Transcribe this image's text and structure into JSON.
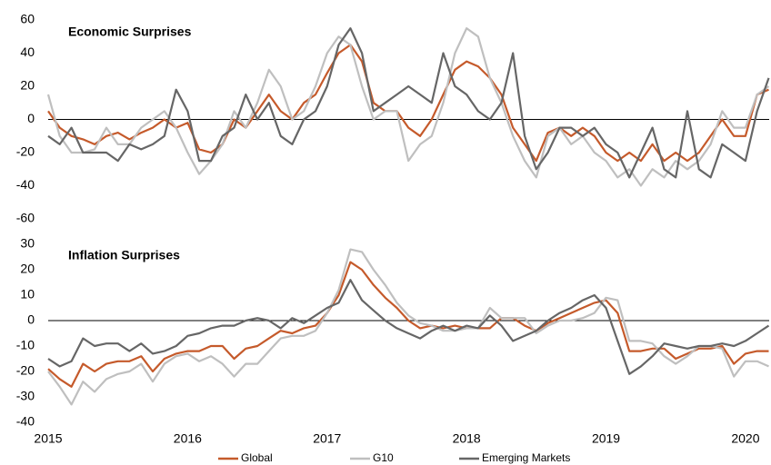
{
  "chart_data": [
    {
      "type": "line",
      "title": "Economic Surprises",
      "x": [
        2015,
        2015.083,
        2015.167,
        2015.25,
        2015.333,
        2015.417,
        2015.5,
        2015.583,
        2015.667,
        2015.75,
        2015.833,
        2015.917,
        2016,
        2016.083,
        2016.167,
        2016.25,
        2016.333,
        2016.417,
        2016.5,
        2016.583,
        2016.667,
        2016.75,
        2016.833,
        2016.917,
        2017,
        2017.083,
        2017.167,
        2017.25,
        2017.333,
        2017.417,
        2017.5,
        2017.583,
        2017.667,
        2017.75,
        2017.833,
        2017.917,
        2018,
        2018.083,
        2018.167,
        2018.25,
        2018.333,
        2018.417,
        2018.5,
        2018.583,
        2018.667,
        2018.75,
        2018.833,
        2018.917,
        2019,
        2019.083,
        2019.167,
        2019.25,
        2019.333,
        2019.417,
        2019.5,
        2019.583,
        2019.667,
        2019.75,
        2019.833,
        2019.917,
        2020,
        2020.083,
        2020.167
      ],
      "xlim": [
        2015,
        2020.17
      ],
      "ylim": [
        -60,
        60
      ],
      "yticks": [
        -60,
        -40,
        -20,
        0,
        20,
        40,
        60
      ],
      "series": [
        {
          "name": "Global",
          "color": "#c55a2b",
          "values": [
            5,
            -5,
            -10,
            -12,
            -15,
            -10,
            -8,
            -12,
            -8,
            -5,
            0,
            -5,
            -2,
            -18,
            -20,
            -15,
            0,
            -5,
            5,
            15,
            5,
            0,
            10,
            15,
            28,
            40,
            45,
            35,
            10,
            5,
            5,
            -5,
            -10,
            0,
            15,
            30,
            35,
            32,
            25,
            15,
            -5,
            -15,
            -25,
            -8,
            -5,
            -10,
            -5,
            -10,
            -20,
            -25,
            -20,
            -25,
            -15,
            -25,
            -20,
            -25,
            -20,
            -10,
            0,
            -10,
            -10,
            15,
            18
          ]
        },
        {
          "name": "G10",
          "color": "#bfbfbf",
          "values": [
            15,
            -10,
            -20,
            -20,
            -18,
            -5,
            -15,
            -15,
            -5,
            0,
            5,
            -5,
            -20,
            -33,
            -25,
            -15,
            5,
            -5,
            10,
            30,
            20,
            0,
            5,
            20,
            40,
            50,
            45,
            20,
            0,
            5,
            5,
            -25,
            -15,
            -10,
            10,
            40,
            55,
            50,
            25,
            10,
            -10,
            -25,
            -35,
            -10,
            -5,
            -15,
            -10,
            -20,
            -25,
            -35,
            -30,
            -40,
            -30,
            -35,
            -25,
            -30,
            -25,
            -15,
            5,
            -5,
            -5,
            15,
            20
          ]
        },
        {
          "name": "Emerging Markets",
          "color": "#666666",
          "values": [
            -10,
            -15,
            -5,
            -20,
            -20,
            -20,
            -25,
            -15,
            -18,
            -15,
            -10,
            18,
            5,
            -25,
            -25,
            -10,
            -5,
            15,
            0,
            10,
            -10,
            -15,
            0,
            5,
            20,
            45,
            55,
            40,
            5,
            10,
            15,
            20,
            15,
            10,
            40,
            20,
            15,
            5,
            0,
            10,
            40,
            -10,
            -30,
            -20,
            -5,
            -5,
            -10,
            -5,
            -15,
            -20,
            -35,
            -20,
            -5,
            -30,
            -35,
            5,
            -30,
            -35,
            -15,
            -20,
            -25,
            5,
            25
          ]
        }
      ]
    },
    {
      "type": "line",
      "title": "Inflation Surprises",
      "x": [
        2015,
        2015.083,
        2015.167,
        2015.25,
        2015.333,
        2015.417,
        2015.5,
        2015.583,
        2015.667,
        2015.75,
        2015.833,
        2015.917,
        2016,
        2016.083,
        2016.167,
        2016.25,
        2016.333,
        2016.417,
        2016.5,
        2016.583,
        2016.667,
        2016.75,
        2016.833,
        2016.917,
        2017,
        2017.083,
        2017.167,
        2017.25,
        2017.333,
        2017.417,
        2017.5,
        2017.583,
        2017.667,
        2017.75,
        2017.833,
        2017.917,
        2018,
        2018.083,
        2018.167,
        2018.25,
        2018.333,
        2018.417,
        2018.5,
        2018.583,
        2018.667,
        2018.75,
        2018.833,
        2018.917,
        2019,
        2019.083,
        2019.167,
        2019.25,
        2019.333,
        2019.417,
        2019.5,
        2019.583,
        2019.667,
        2019.75,
        2019.833,
        2019.917,
        2020,
        2020.083,
        2020.167
      ],
      "xlim": [
        2015,
        2020.17
      ],
      "xticks": [
        2015,
        2016,
        2017,
        2018,
        2019,
        2020
      ],
      "ylim": [
        -40,
        30
      ],
      "yticks": [
        -40,
        -30,
        -20,
        -10,
        0,
        10,
        20,
        30
      ],
      "series": [
        {
          "color": "#c55a2b",
          "values": [
            -19,
            -23,
            -26,
            -17,
            -20,
            -17,
            -16,
            -16,
            -14,
            -20,
            -15,
            -13,
            -12,
            -12,
            -10,
            -10,
            -15,
            -11,
            -10,
            -7,
            -4,
            -5,
            -3,
            -2,
            3,
            10,
            23,
            20,
            14,
            9,
            5,
            0,
            -3,
            -2,
            -3,
            -2,
            -3,
            -3,
            -3,
            1,
            1,
            -2,
            -4,
            -1,
            1,
            3,
            5,
            7,
            8,
            3,
            -12,
            -12,
            -11,
            -11,
            -15,
            -13,
            -11,
            -11,
            -10,
            -17,
            -13,
            -12,
            -12
          ]
        },
        {
          "color": "#bfbfbf",
          "values": [
            -20,
            -26,
            -33,
            -24,
            -28,
            -23,
            -21,
            -20,
            -17,
            -24,
            -17,
            -14,
            -13,
            -16,
            -14,
            -17,
            -22,
            -17,
            -17,
            -12,
            -7,
            -6,
            -6,
            -4,
            3,
            12,
            28,
            27,
            20,
            14,
            7,
            2,
            -1,
            -2,
            -4,
            -4,
            -3,
            -3,
            5,
            1,
            1,
            1,
            -5,
            -2,
            0,
            0,
            1,
            3,
            9,
            8,
            -8,
            -8,
            -9,
            -14,
            -17,
            -14,
            -10,
            -10,
            -11,
            -22,
            -16,
            -16,
            -18
          ]
        },
        {
          "color": "#666666",
          "values": [
            -15,
            -18,
            -16,
            -7,
            -10,
            -9,
            -9,
            -12,
            -9,
            -13,
            -12,
            -10,
            -6,
            -5,
            -3,
            -2,
            -2,
            0,
            1,
            0,
            -3,
            1,
            -1,
            2,
            5,
            7,
            16,
            8,
            4,
            0,
            -3,
            -5,
            -7,
            -4,
            -2,
            -4,
            -2,
            -3,
            2,
            -2,
            -8,
            -6,
            -4,
            0,
            3,
            5,
            8,
            10,
            5,
            -8,
            -21,
            -18,
            -14,
            -9,
            -10,
            -11,
            -10,
            -10,
            -9,
            -10,
            -8,
            -5,
            -2
          ]
        }
      ]
    }
  ]
}
